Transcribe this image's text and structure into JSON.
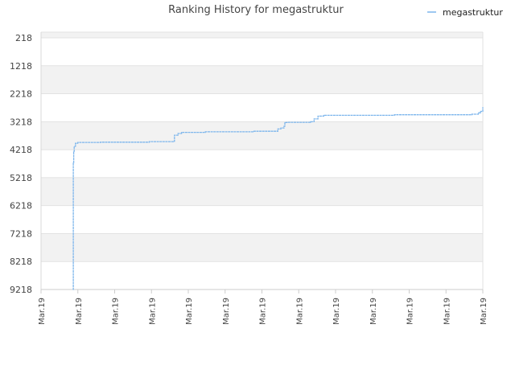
{
  "chart_data": {
    "type": "line",
    "title": "Ranking History for megastruktur",
    "xlabel": "",
    "ylabel": "",
    "y_axis_inverted": true,
    "ylim": [
      218,
      9218
    ],
    "y_ticks": [
      "218",
      "1218",
      "2218",
      "3218",
      "4218",
      "5218",
      "6218",
      "7218",
      "8218",
      "9218"
    ],
    "x_ticks": [
      "Mar.19",
      "Mar.19",
      "Mar.19",
      "Mar.19",
      "Mar.19",
      "Mar.19",
      "Mar.19",
      "Mar.19",
      "Mar.19",
      "Mar.19",
      "Mar.19",
      "Mar.19",
      "Mar.19"
    ],
    "grid": true,
    "legend_position": "top-right",
    "series": [
      {
        "name": "megastruktur",
        "color": "#7cb5ec",
        "x": [
          0.072,
          0.073,
          0.074,
          0.075,
          0.078,
          0.083,
          0.135,
          0.245,
          0.299,
          0.302,
          0.31,
          0.318,
          0.372,
          0.48,
          0.536,
          0.543,
          0.55,
          0.552,
          0.553,
          0.557,
          0.61,
          0.618,
          0.627,
          0.64,
          0.8,
          0.975,
          0.99,
          0.995,
          1.0
        ],
        "values": [
          9218,
          4700,
          4300,
          4100,
          3990,
          3960,
          3950,
          3930,
          3920,
          3700,
          3640,
          3600,
          3580,
          3560,
          3480,
          3440,
          3380,
          3260,
          3250,
          3240,
          3220,
          3120,
          3020,
          2990,
          2970,
          2950,
          2900,
          2850,
          2700
        ]
      }
    ]
  }
}
